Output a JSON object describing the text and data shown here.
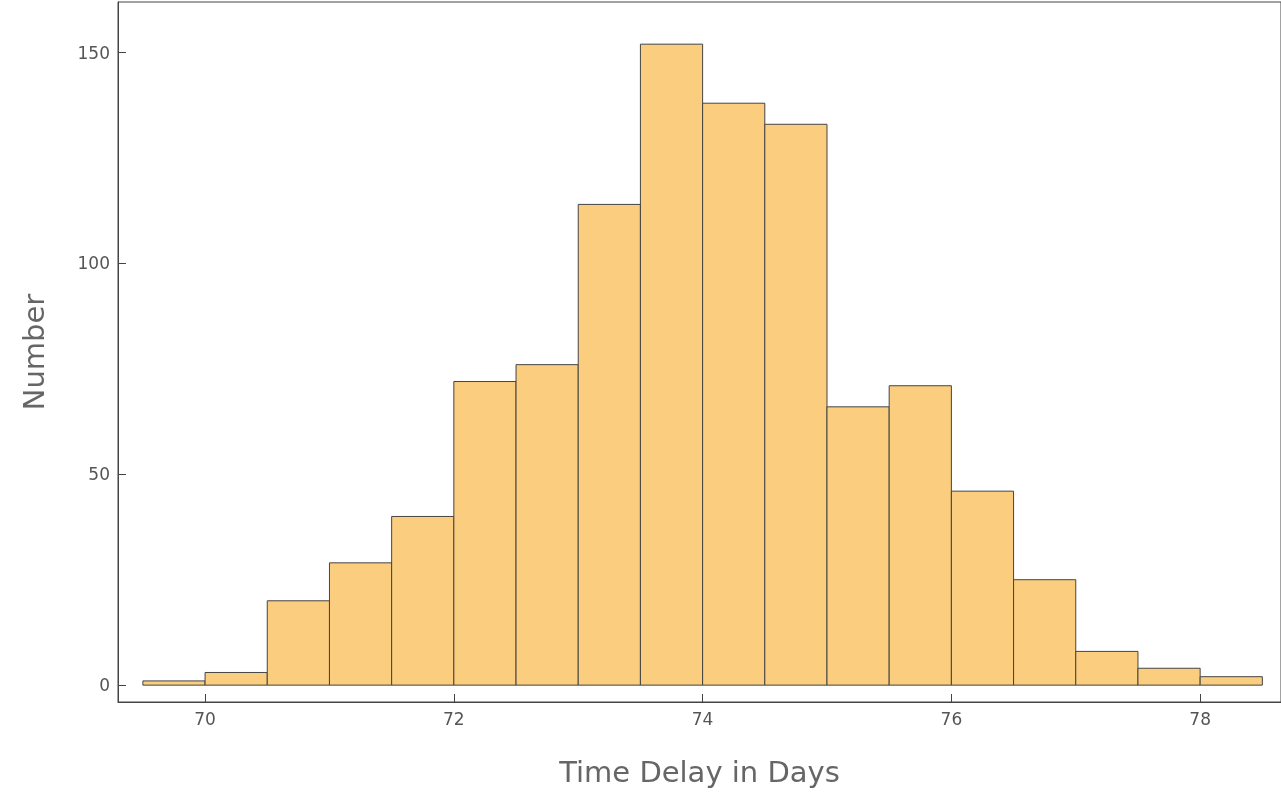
{
  "chart_data": {
    "type": "histogram",
    "xlabel": "Time Delay in Days",
    "ylabel": "Number",
    "color": "#fbcd7e",
    "bins": [
      69.5,
      70,
      70.5,
      71,
      71.5,
      72,
      72.5,
      73,
      73.5,
      74,
      74.5,
      75,
      75.5,
      76,
      76.5,
      77,
      77.5,
      78,
      78.5
    ],
    "values": [
      1,
      3,
      20,
      29,
      40,
      72,
      76,
      114,
      152,
      138,
      133,
      66,
      71,
      46,
      25,
      8,
      4,
      2
    ],
    "xlim": [
      69.3,
      78.65
    ],
    "xticks": [
      70,
      72,
      74,
      76,
      78
    ],
    "ylim": [
      -4,
      162
    ],
    "yticks": [
      0,
      50,
      100,
      150
    ],
    "grid": false
  }
}
